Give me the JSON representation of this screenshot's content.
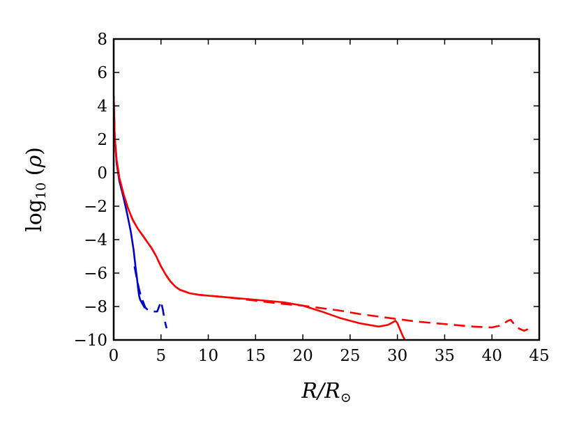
{
  "chart_data": {
    "type": "line",
    "xlabel": "R/R⊙",
    "ylabel": "log10 (ρ)",
    "xlim": [
      0,
      45
    ],
    "ylim": [
      -10,
      8
    ],
    "x_ticks": [
      0,
      5,
      10,
      15,
      20,
      25,
      30,
      35,
      40,
      45
    ],
    "y_ticks": [
      8,
      6,
      4,
      2,
      0,
      -2,
      -4,
      -6,
      -8,
      -10
    ],
    "x_tick_labels": [
      "0",
      "5",
      "10",
      "15",
      "20",
      "25",
      "30",
      "35",
      "40",
      "45"
    ],
    "y_tick_labels": [
      "8",
      "6",
      "4",
      "2",
      "0",
      "−2",
      "−4",
      "−6",
      "−8",
      "−10"
    ],
    "grid": false,
    "series": [
      {
        "color": "#0000cc",
        "style": "solid",
        "x": [
          0.0,
          0.1,
          0.3,
          0.6,
          1.0,
          1.4,
          1.8,
          2.1,
          2.3,
          2.5,
          2.6,
          2.7,
          2.8,
          2.9,
          3.0,
          3.1,
          3.2,
          3.3
        ],
        "y": [
          4.6,
          2.2,
          0.6,
          -0.5,
          -1.4,
          -2.4,
          -3.5,
          -4.6,
          -5.6,
          -6.5,
          -7.0,
          -7.4,
          -7.6,
          -7.7,
          -7.8,
          -7.9,
          -8.0,
          -8.1
        ]
      },
      {
        "color": "#0000cc",
        "style": "dashed",
        "x": [
          2.2,
          2.5,
          2.7,
          2.9,
          3.1,
          3.3,
          3.4,
          3.6,
          4.0,
          4.3,
          4.6,
          5.0,
          5.2,
          5.35,
          5.5,
          5.6
        ],
        "y": [
          -5.6,
          -6.5,
          -7.0,
          -7.4,
          -7.7,
          -8.0,
          -8.1,
          -8.2,
          -8.25,
          -8.3,
          -8.3,
          -7.7,
          -8.2,
          -8.7,
          -9.1,
          -9.3
        ]
      },
      {
        "color": "#ff0000",
        "style": "solid",
        "x": [
          0.0,
          0.1,
          0.3,
          0.6,
          1.0,
          1.5,
          2.0,
          2.5,
          3.0,
          3.5,
          4.0,
          4.5,
          5.0,
          5.5,
          6.0,
          6.5,
          7.0,
          7.5,
          8.0,
          8.5,
          9.0,
          10.0,
          12.0,
          14.0,
          16.0,
          18.0,
          20.0,
          22.0,
          24.0,
          26.0,
          28.0,
          29.0,
          29.5,
          29.8,
          30.0,
          30.3,
          30.6,
          30.9
        ],
        "y": [
          4.6,
          2.2,
          0.8,
          -0.3,
          -1.2,
          -2.1,
          -2.8,
          -3.3,
          -3.7,
          -4.1,
          -4.5,
          -5.0,
          -5.6,
          -6.1,
          -6.5,
          -6.8,
          -7.0,
          -7.1,
          -7.2,
          -7.25,
          -7.3,
          -7.35,
          -7.45,
          -7.55,
          -7.65,
          -7.75,
          -7.95,
          -8.3,
          -8.7,
          -9.0,
          -9.2,
          -9.1,
          -8.95,
          -8.85,
          -9.0,
          -9.4,
          -9.8,
          -10.1
        ]
      },
      {
        "color": "#ff0000",
        "style": "dashed",
        "x": [
          0.0,
          0.1,
          0.3,
          0.6,
          1.0,
          1.5,
          2.0,
          2.5,
          3.0,
          3.5,
          4.0,
          4.5,
          5.0,
          5.5,
          6.0,
          6.5,
          7.0,
          7.5,
          8.0,
          8.5,
          9.0,
          10.0,
          12.0,
          15.0,
          18.0,
          20.0,
          22.0,
          24.0,
          26.0,
          28.0,
          30.0,
          32.0,
          34.0,
          36.0,
          38.0,
          40.0,
          40.8,
          41.3,
          41.7,
          42.0,
          42.6,
          43.0,
          43.4,
          43.8
        ],
        "y": [
          4.6,
          2.2,
          0.8,
          -0.3,
          -1.2,
          -2.1,
          -2.8,
          -3.3,
          -3.7,
          -4.1,
          -4.5,
          -5.0,
          -5.6,
          -6.1,
          -6.5,
          -6.8,
          -7.0,
          -7.1,
          -7.2,
          -7.25,
          -7.3,
          -7.35,
          -7.45,
          -7.65,
          -7.85,
          -7.95,
          -8.1,
          -8.25,
          -8.45,
          -8.6,
          -8.75,
          -8.9,
          -9.0,
          -9.1,
          -9.2,
          -9.25,
          -9.15,
          -9.0,
          -8.85,
          -8.8,
          -9.25,
          -9.35,
          -9.45,
          -9.35
        ]
      }
    ]
  }
}
